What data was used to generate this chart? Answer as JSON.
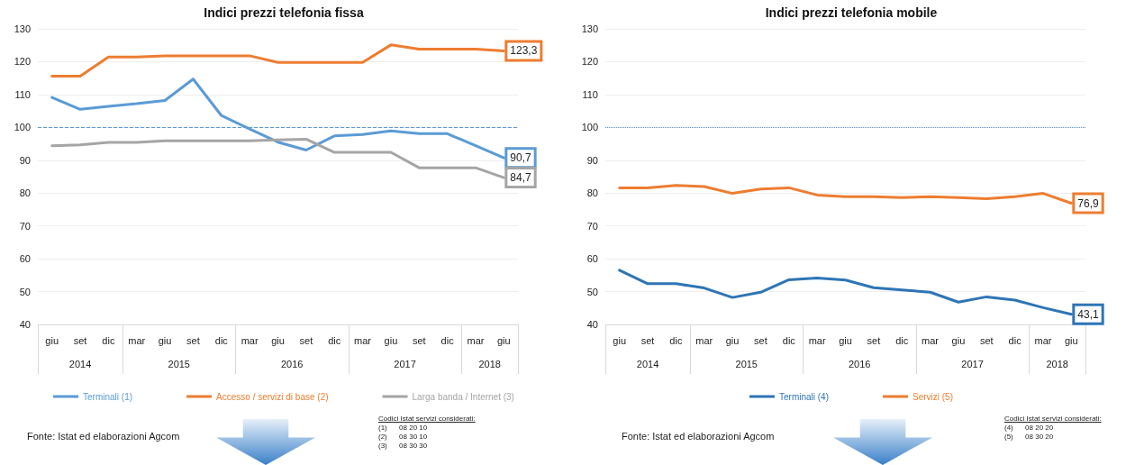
{
  "chart_data": [
    {
      "type": "line",
      "title": "Indici prezzi telefonia fissa",
      "categories": [
        "giu",
        "set",
        "dic",
        "mar",
        "giu",
        "set",
        "dic",
        "mar",
        "giu",
        "set",
        "dic",
        "mar",
        "giu",
        "set",
        "dic",
        "mar",
        "giu"
      ],
      "series": [
        {
          "name": "Terminali (1)",
          "color": "#5b9bd5",
          "values": [
            109.1,
            105.5,
            106.4,
            107.2,
            108.2,
            114.7,
            103.6,
            99.5,
            95.5,
            93.1,
            97.4,
            97.8,
            98.9,
            98.1,
            98.1,
            94.4,
            90.7
          ],
          "value_labels": [
            null,
            null,
            null,
            null,
            null,
            null,
            null,
            null,
            null,
            null,
            null,
            null,
            null,
            null,
            null,
            null,
            "90,7"
          ]
        },
        {
          "name": "Accesso / servizi di base (2)",
          "color": "#ed7d31",
          "values": [
            115.6,
            115.6,
            121.4,
            121.4,
            121.8,
            121.8,
            121.8,
            121.8,
            119.8,
            119.8,
            119.8,
            119.8,
            125.1,
            123.8,
            123.8,
            123.8,
            123.3
          ],
          "value_labels": [
            null,
            null,
            null,
            null,
            null,
            null,
            null,
            null,
            null,
            null,
            null,
            null,
            null,
            null,
            null,
            null,
            "123,3"
          ]
        },
        {
          "name": "Larga banda / Internet (3)",
          "color": "#a5a5a5",
          "values": [
            94.4,
            94.7,
            95.4,
            95.4,
            95.9,
            95.9,
            95.9,
            95.9,
            96.2,
            96.4,
            92.4,
            92.4,
            92.4,
            87.7,
            87.7,
            87.7,
            84.7
          ],
          "value_labels": [
            null,
            null,
            null,
            null,
            null,
            null,
            null,
            null,
            null,
            null,
            null,
            null,
            null,
            null,
            null,
            null,
            "84,7"
          ]
        }
      ],
      "ylim": [
        40,
        130
      ],
      "yticks": [
        40,
        50,
        60,
        70,
        80,
        90,
        100,
        110,
        120,
        130
      ],
      "grid": "y",
      "legend": "bottom",
      "marker": "none",
      "line_style": "solid",
      "ref_lines": [
        {
          "axis": "y",
          "value": 100,
          "color": "#5b9bd5",
          "line_style": "dashed"
        }
      ],
      "annotations": [
        "2014",
        "2015",
        "2016",
        "2017",
        "2018",
        "Fonte: Istat ed elaborazioni Agcom",
        "Codici Istat servizi considerati:",
        "(1)      08 20 10",
        "(2)      08 30 10",
        "(3)      08 30 30"
      ]
    },
    {
      "type": "line",
      "title": "Indici prezzi telefonia mobile",
      "categories": [
        "giu",
        "set",
        "dic",
        "mar",
        "giu",
        "set",
        "dic",
        "mar",
        "giu",
        "set",
        "dic",
        "mar",
        "giu",
        "set",
        "dic",
        "mar",
        "giu"
      ],
      "series": [
        {
          "name": "Terminali (4)",
          "color": "#2e75b6",
          "values": [
            56.5,
            52.4,
            52.4,
            51.1,
            48.2,
            49.8,
            53.6,
            54.1,
            53.5,
            51.2,
            50.5,
            49.8,
            46.8,
            48.4,
            47.4,
            45.1,
            43.1
          ],
          "value_labels": [
            null,
            null,
            null,
            null,
            null,
            null,
            null,
            null,
            null,
            null,
            null,
            null,
            null,
            null,
            null,
            null,
            "43,1"
          ]
        },
        {
          "name": "Servizi (5)",
          "color": "#ed7d31",
          "values": [
            81.6,
            81.6,
            82.3,
            82.0,
            79.9,
            81.2,
            81.6,
            79.4,
            78.9,
            78.9,
            78.6,
            78.9,
            78.6,
            78.3,
            78.9,
            79.9,
            76.9
          ],
          "value_labels": [
            null,
            null,
            null,
            null,
            null,
            null,
            null,
            null,
            null,
            null,
            null,
            null,
            null,
            null,
            null,
            null,
            "76,9"
          ]
        }
      ],
      "ylim": [
        40,
        130
      ],
      "yticks": [
        40,
        50,
        60,
        70,
        80,
        90,
        100,
        110,
        120,
        130
      ],
      "grid": "y",
      "legend": "bottom",
      "marker": "none",
      "line_style": "solid",
      "ref_lines": [
        {
          "axis": "y",
          "value": 100,
          "color": "#5b9bd5",
          "line_style": "dotted"
        }
      ],
      "annotations": [
        "2014",
        "2015",
        "2016",
        "2017",
        "2018",
        "Fonte: Istat ed elaborazioni Agcom",
        "Codici Istat servizi considerati:",
        "(4)      08 20 20",
        "(5)      08 30 20"
      ]
    }
  ]
}
